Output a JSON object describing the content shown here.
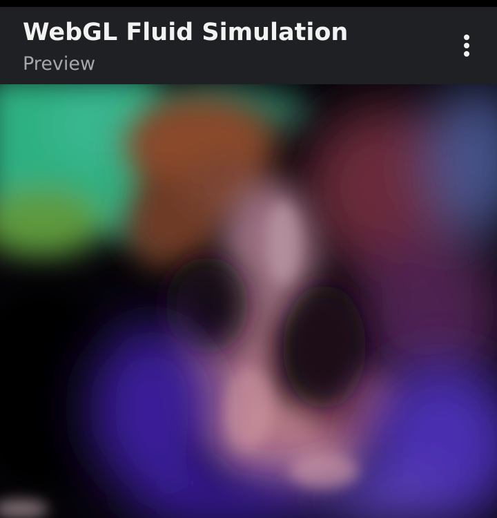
{
  "app_bar": {
    "title": "WebGL Fluid Simulation",
    "subtitle": "Preview",
    "overflow_icon": "more-vert-icon"
  },
  "simulation": {
    "colors": {
      "teal": "#2fb082",
      "green": "#5d9a3c",
      "orange_brown": "#8a4a2a",
      "pink_mauve": "#b57a86",
      "violet": "#4a2fb0",
      "maroon": "#6a2c3a",
      "slate_blue": "#44528a",
      "background": "#050308"
    }
  }
}
